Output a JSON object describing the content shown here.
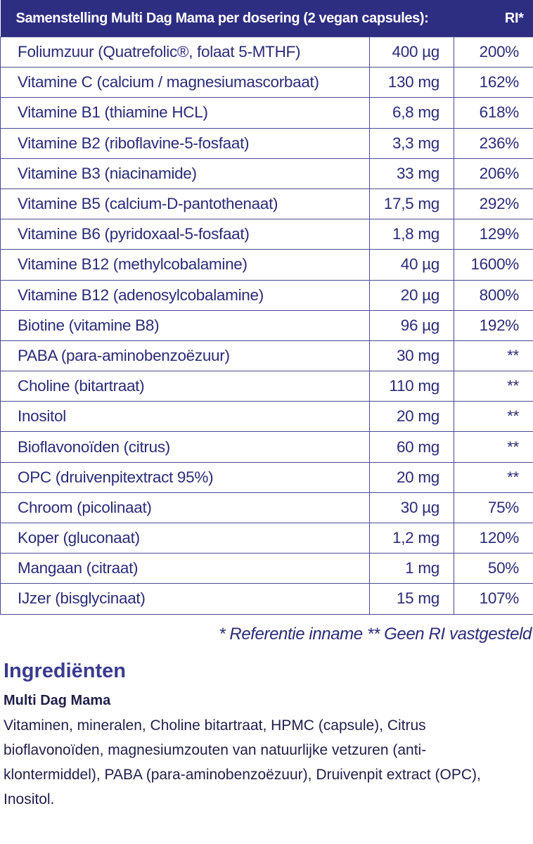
{
  "table": {
    "header": [
      "Samenstelling Multi Dag Mama per dosering (2 vegan capsules):",
      "RI*"
    ],
    "rows": [
      [
        "Foliumzuur (Quatrefolic®, folaat 5-MTHF)",
        "400 µg",
        "200%"
      ],
      [
        "Vitamine C (calcium / magnesiumascorbaat)",
        "130 mg",
        "162%"
      ],
      [
        "Vitamine B1 (thiamine HCL)",
        "6,8 mg",
        "618%"
      ],
      [
        "Vitamine B2 (riboflavine-5-fosfaat)",
        "3,3 mg",
        "236%"
      ],
      [
        "Vitamine B3 (niacinamide)",
        "33 mg",
        "206%"
      ],
      [
        "Vitamine B5 (calcium-D-pantothenaat)",
        "17,5 mg",
        "292%"
      ],
      [
        "Vitamine B6 (pyridoxaal-5-fosfaat)",
        "1,8 mg",
        "129%"
      ],
      [
        "Vitamine B12 (methylcobalamine)",
        "40 µg",
        "1600%"
      ],
      [
        "Vitamine B12 (adenosylcobalamine)",
        "20 µg",
        "800%"
      ],
      [
        "Biotine (vitamine B8)",
        "96 µg",
        "192%"
      ],
      [
        "PABA (para-aminobenzoëzuur)",
        "30 mg",
        "**"
      ],
      [
        "Choline (bitartraat)",
        "110 mg",
        "**"
      ],
      [
        "Inositol",
        "20 mg",
        "**"
      ],
      [
        "Bioflavonoïden (citrus)",
        "60 mg",
        "**"
      ],
      [
        "OPC (druivenpitextract 95%)",
        "20 mg",
        "**"
      ],
      [
        "Chroom (picolinaat)",
        "30 µg",
        "75%"
      ],
      [
        "Koper (gluconaat)",
        "1,2 mg",
        "120%"
      ],
      [
        "Mangaan (citraat)",
        "1 mg",
        "50%"
      ],
      [
        "IJzer (bisglycinaat)",
        "15 mg",
        "107%"
      ]
    ]
  },
  "footnote": "* Referentie inname  ** Geen RI vastgesteld",
  "ingredients": {
    "title": "Ingrediënten",
    "product": "Multi Dag Mama",
    "text": "Vitaminen, mineralen, Choline bitartraat, HPMC (capsule), Citrus bioflavonoïden, magnesiumzouten van natuurlijke vetzuren (anti-klontermiddel), PABA (para-aminobenzoëzuur), Druivenpit extract (OPC), Inositol."
  }
}
